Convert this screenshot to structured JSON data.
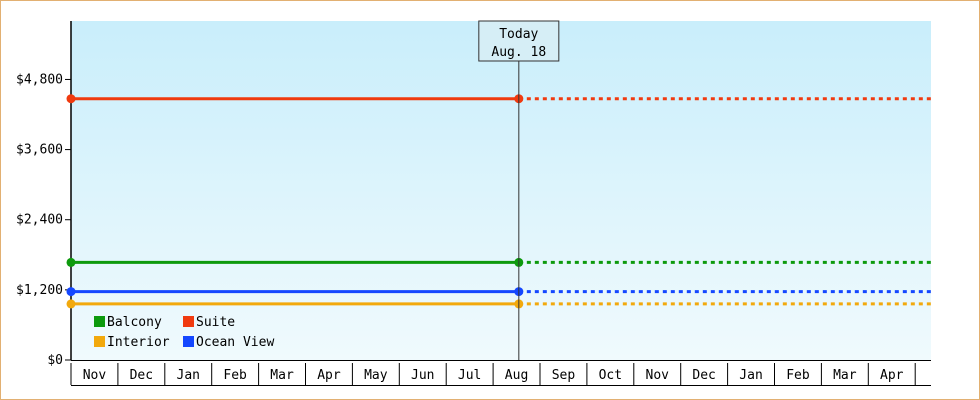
{
  "chart_data": {
    "type": "line",
    "ylim": [
      0,
      5800
    ],
    "yticks": [
      {
        "value": 0,
        "label": "$0"
      },
      {
        "value": 1200,
        "label": "$1,200"
      },
      {
        "value": 2400,
        "label": "$2,400"
      },
      {
        "value": 3600,
        "label": "$3,600"
      },
      {
        "value": 4800,
        "label": "$4,800"
      }
    ],
    "months": [
      "Nov",
      "Dec",
      "Jan",
      "Feb",
      "Mar",
      "Apr",
      "May",
      "Jun",
      "Jul",
      "Aug",
      "Sep",
      "Oct",
      "Nov",
      "Dec",
      "Jan",
      "Feb",
      "Mar",
      "Apr"
    ],
    "x_start": "Nov",
    "today_label": [
      "Today",
      "Aug. 18"
    ],
    "today_x": "Aug. 18",
    "grid": false,
    "series": [
      {
        "name": "Suite",
        "color": "#f03a0f",
        "value": 4470
      },
      {
        "name": "Balcony",
        "color": "#0d9a0d",
        "value": 1670
      },
      {
        "name": "Ocean View",
        "color": "#1447ff",
        "value": 1170
      },
      {
        "name": "Interior",
        "color": "#f2a90d",
        "value": 960
      }
    ],
    "legend": {
      "placement": "bottom-left",
      "rows": [
        [
          "Balcony",
          "Suite"
        ],
        [
          "Interior",
          "Ocean View"
        ]
      ]
    },
    "colors": {
      "plot_top": "#c9eefb",
      "plot_bottom": "#f0fafd",
      "axis": "#000000",
      "frame_border": "#e2b072"
    }
  }
}
